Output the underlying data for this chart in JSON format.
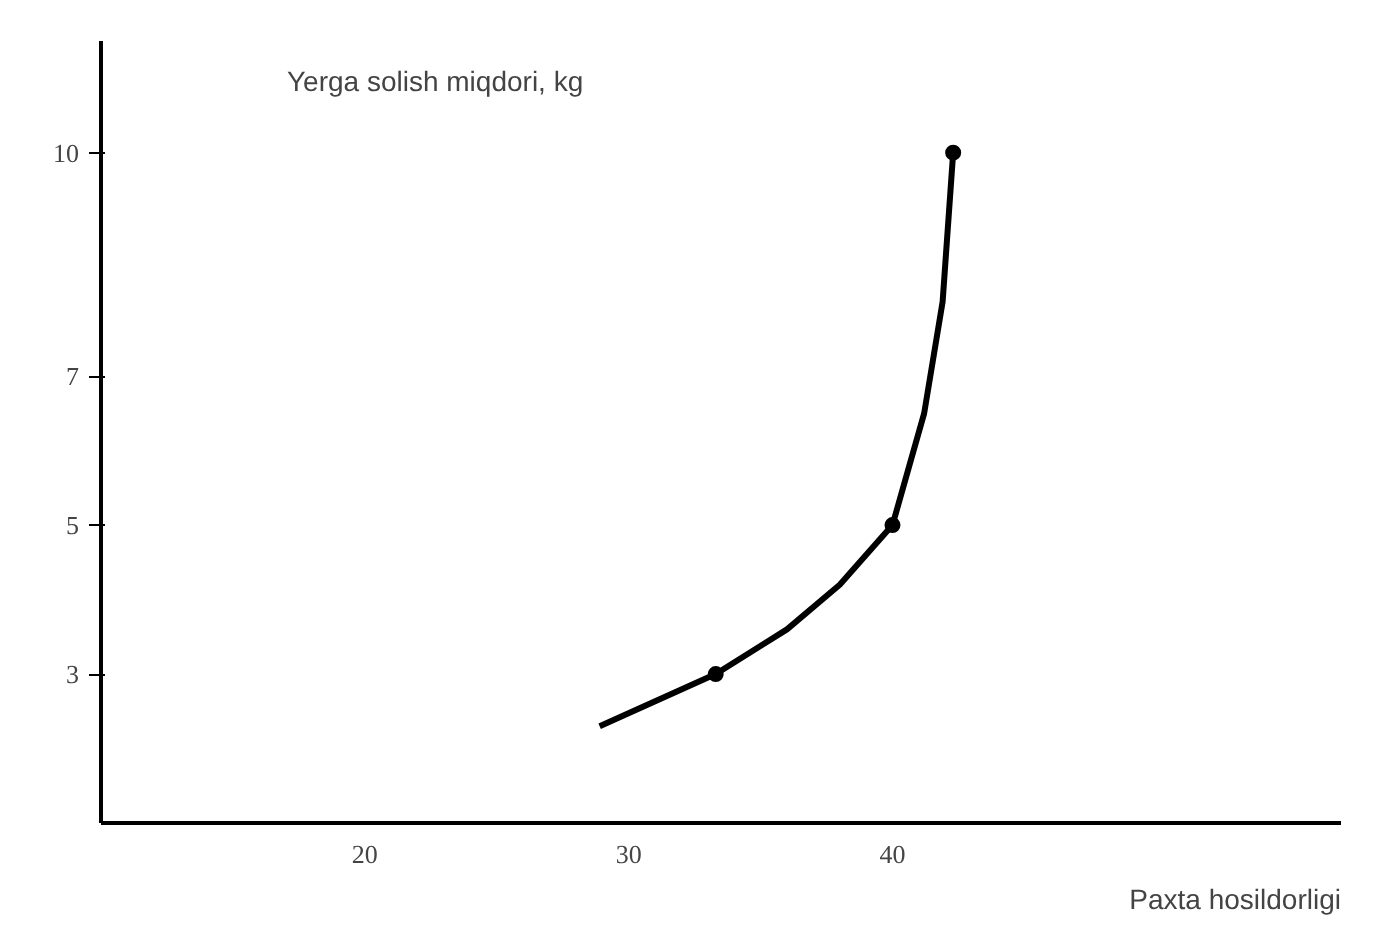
{
  "chart_data": {
    "type": "line",
    "xlabel": "Paxta hosildorligi",
    "ylabel": "Yerga solish miqdori, kg",
    "xlim": [
      10,
      57
    ],
    "ylim": [
      1,
      11.5
    ],
    "xticks": [
      20,
      30,
      40
    ],
    "yticks": [
      3,
      5,
      7,
      10
    ],
    "grid": false,
    "series": [
      {
        "color": "#000000",
        "x": [
          28.9,
          33.3,
          36,
          38,
          40,
          41.2,
          41.9,
          42.3
        ],
        "values": [
          2.3,
          3,
          3.6,
          4.2,
          5,
          6.5,
          8,
          10
        ]
      },
      {
        "type": "scatter",
        "color": "#000000",
        "marker": "circle",
        "x": [
          33.3,
          40,
          42.3
        ],
        "values": [
          3,
          5,
          10
        ]
      }
    ]
  }
}
